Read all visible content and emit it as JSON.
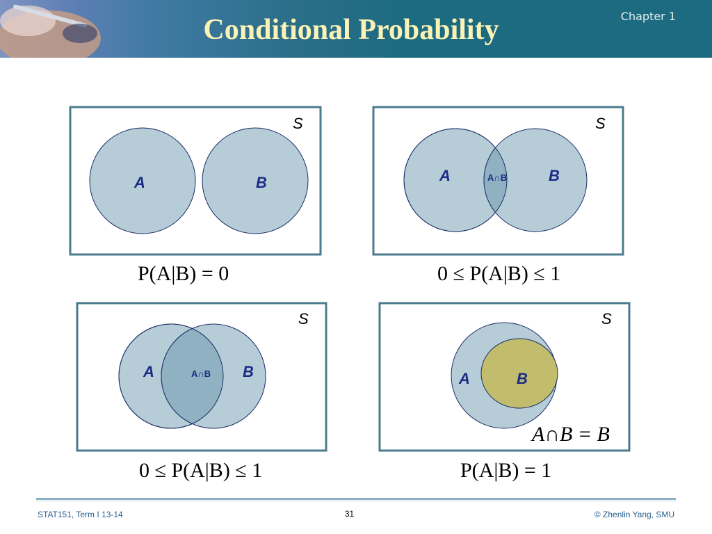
{
  "header": {
    "title": "Conditional Probability",
    "chapter": "Chapter 1"
  },
  "diagrams": {
    "set_s": "S",
    "set_a": "A",
    "set_b": "B",
    "intersection": "A∩B"
  },
  "formulas": {
    "top_left": "P(A|B) = 0",
    "top_right": "0 ≤ P(A|B) ≤ 1",
    "bottom_left": "0 ≤ P(A|B) ≤ 1",
    "bottom_right": "P(A|B) = 1",
    "subset_relation": "A∩B = B"
  },
  "footer": {
    "course": "STAT151, Term I 13-14",
    "page": "31",
    "copyright": "© Zhenlin Yang, SMU"
  },
  "colors": {
    "header_bg": "#1d6b80",
    "title_text": "#fbf2b6",
    "circle_fill": "#b6cdd8",
    "intersection_fill": "#8fb1c1",
    "subset_fill": "#c1bd6c",
    "frame": "#4a7b8c"
  }
}
